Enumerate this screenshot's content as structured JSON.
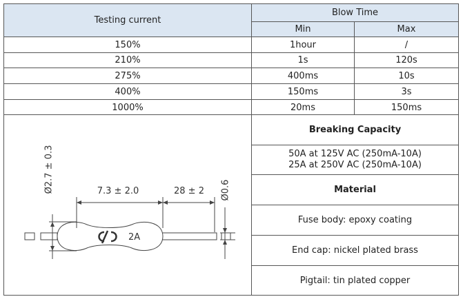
{
  "table": {
    "header": {
      "testing_current": "Testing current",
      "blow_time": "Blow Time",
      "min": "Min",
      "max": "Max"
    },
    "rows": [
      [
        "150%",
        "1hour",
        "/"
      ],
      [
        "210%",
        "1s",
        "120s"
      ],
      [
        "275%",
        "400ms",
        "10s"
      ],
      [
        "400%",
        "150ms",
        "3s"
      ],
      [
        "1000%",
        "20ms",
        "150ms"
      ]
    ]
  },
  "details": {
    "breaking_capacity_title": "Breaking Capacity",
    "breaking_capacity": [
      "50A at 125V AC (250mA-10A)",
      "25A at 250V AC (250mA-10A)"
    ],
    "material_title": "Material",
    "material": [
      "Fuse body: epoxy coating",
      "End cap: nickel plated brass",
      "Pigtail: tin plated copper"
    ]
  },
  "diagram": {
    "body_diameter": "Ø2.7 ± 0.3",
    "body_length": "7.3 ± 2.0",
    "lead_length": "28 ± 2",
    "lead_diameter": "Ø0.6",
    "marking": "2A"
  }
}
